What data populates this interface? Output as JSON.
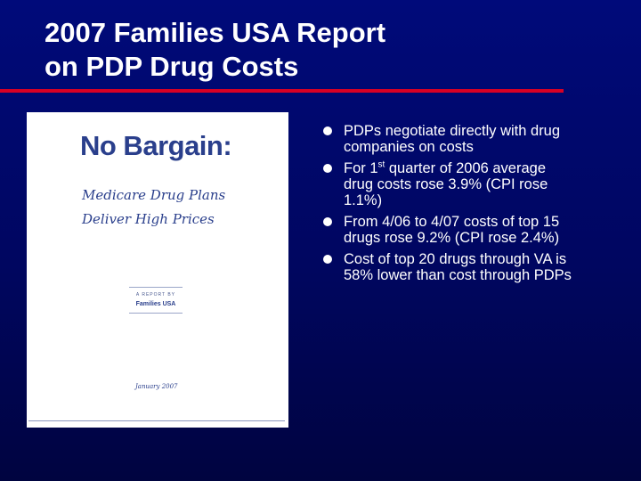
{
  "slide": {
    "title_line1": "2007 Families USA Report",
    "title_line2": "on PDP Drug Costs",
    "accent_color": "#d80024",
    "background_color": "#000a7a"
  },
  "cover": {
    "headline": "No Bargain:",
    "subtitle_line1": "Medicare Drug Plans",
    "subtitle_line2": "Deliver High Prices",
    "report_by": "A REPORT BY",
    "organization": "Families USA",
    "date": "January 2007"
  },
  "bullets": [
    {
      "text": "PDPs negotiate directly with drug companies on costs"
    },
    {
      "pre": "For 1",
      "sup": "st",
      "post": " quarter of 2006 average drug costs rose 3.9% (CPI rose 1.1%)"
    },
    {
      "text": "From 4/06 to 4/07 costs of top 15 drugs rose 9.2% (CPI rose 2.4%)"
    },
    {
      "text": "Cost of top 20 drugs through VA is 58% lower than cost through PDPs"
    }
  ]
}
